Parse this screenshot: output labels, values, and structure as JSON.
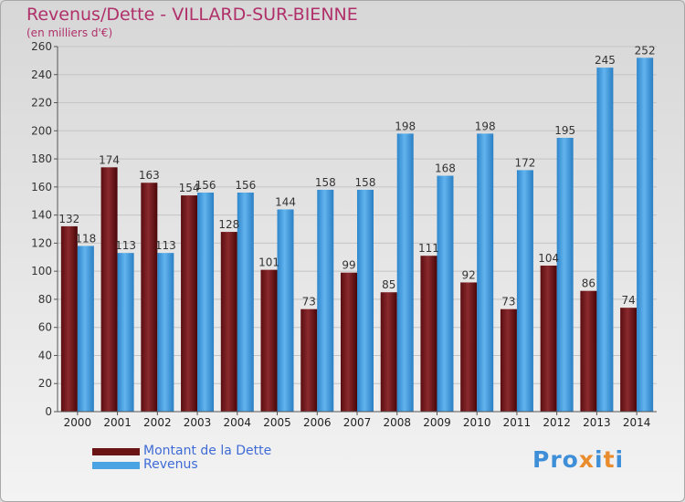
{
  "title": "Revenus/Dette - VILLARD-SUR-BIENNE",
  "subtitle": "(en milliers d'€)",
  "colors": {
    "dette": "#7a1d22",
    "revenus": "#4aa3e2",
    "title": "#b0306a",
    "legend_text": "#3f6bd6"
  },
  "legend": [
    {
      "label": "Montant de la Dette",
      "color": "#6b1416"
    },
    {
      "label": "Revenus",
      "color": "#4aa3e2"
    }
  ],
  "logo": {
    "text": "Proxiti"
  },
  "chart_data": {
    "type": "bar",
    "title": "Revenus/Dette - VILLARD-SUR-BIENNE",
    "subtitle": "(en milliers d'€)",
    "categories": [
      "2000",
      "2001",
      "2002",
      "2003",
      "2004",
      "2005",
      "2006",
      "2007",
      "2008",
      "2009",
      "2010",
      "2011",
      "2012",
      "2013",
      "2014"
    ],
    "series": [
      {
        "name": "Montant de la Dette",
        "values": [
          132,
          174,
          163,
          154,
          128,
          101,
          73,
          99,
          85,
          111,
          92,
          73,
          104,
          86,
          74
        ]
      },
      {
        "name": "Revenus",
        "values": [
          118,
          113,
          113,
          156,
          156,
          144,
          158,
          158,
          198,
          168,
          198,
          172,
          195,
          245,
          252
        ]
      }
    ],
    "ylim": [
      0,
      260
    ],
    "yticks": [
      0,
      20,
      40,
      60,
      80,
      100,
      120,
      140,
      160,
      180,
      200,
      220,
      240,
      260
    ],
    "grid": true,
    "legend_position": "bottom-left"
  }
}
